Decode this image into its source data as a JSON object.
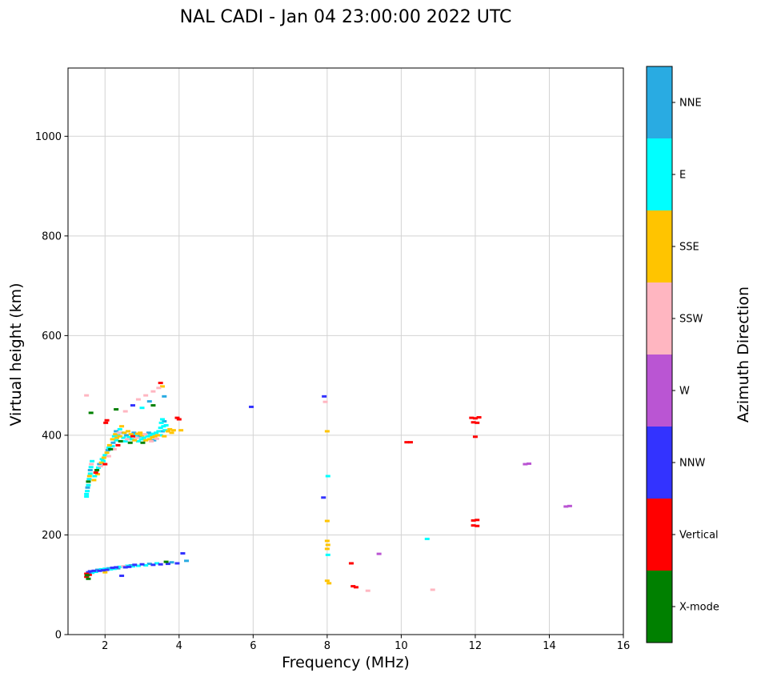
{
  "chart_data": {
    "type": "scatter",
    "title": "NAL CADI - Jan 04 23:00:00 2022 UTC",
    "xlabel": "Frequency (MHz)",
    "ylabel": "Virtual height (km)",
    "xlim": [
      1,
      16
    ],
    "ylim": [
      0,
      1137
    ],
    "xticks": [
      2,
      4,
      6,
      8,
      10,
      12,
      14,
      16
    ],
    "yticks": [
      0,
      200,
      400,
      600,
      800,
      1000
    ],
    "grid": true,
    "grid_color": "#d3d3d3",
    "marker": "horizontal-dash",
    "colorbar": {
      "label": "Azimuth Direction",
      "categories": [
        {
          "label": "NNE",
          "color": "#29abe2"
        },
        {
          "label": "E",
          "color": "#00ffff"
        },
        {
          "label": "SSE",
          "color": "#ffc400"
        },
        {
          "label": "SSW",
          "color": "#ffb6c1"
        },
        {
          "label": "W",
          "color": "#ba55d3"
        },
        {
          "label": "NNW",
          "color": "#3333ff"
        },
        {
          "label": "Vertical",
          "color": "#ff0000"
        },
        {
          "label": "X-mode",
          "color": "#008000"
        }
      ]
    },
    "series": [
      {
        "name": "NNE",
        "color": "#29abe2",
        "points": [
          [
            1.53,
            295
          ],
          [
            1.6,
            330
          ],
          [
            1.85,
            342
          ],
          [
            2.08,
            370
          ],
          [
            2.22,
            385
          ],
          [
            2.3,
            408
          ],
          [
            2.45,
            405
          ],
          [
            2.58,
            400
          ],
          [
            2.78,
            405
          ],
          [
            2.92,
            398
          ],
          [
            3.18,
            405
          ],
          [
            3.32,
            390
          ],
          [
            3.55,
            408
          ],
          [
            3.6,
            428
          ],
          [
            3.2,
            468
          ],
          [
            3.6,
            478
          ],
          [
            1.8,
            130
          ],
          [
            2.1,
            133
          ],
          [
            2.35,
            133
          ],
          [
            2.7,
            139
          ],
          [
            3.2,
            142
          ],
          [
            3.8,
            145
          ],
          [
            4.2,
            148
          ]
        ]
      },
      {
        "name": "E",
        "color": "#00ffff",
        "points": [
          [
            1.5,
            277
          ],
          [
            1.5,
            282
          ],
          [
            1.52,
            288
          ],
          [
            1.55,
            300
          ],
          [
            1.57,
            312
          ],
          [
            1.6,
            323
          ],
          [
            1.62,
            336
          ],
          [
            1.65,
            348
          ],
          [
            1.72,
            318
          ],
          [
            1.82,
            335
          ],
          [
            1.92,
            352
          ],
          [
            1.95,
            348
          ],
          [
            2.0,
            360
          ],
          [
            2.1,
            375
          ],
          [
            2.2,
            378
          ],
          [
            2.25,
            398
          ],
          [
            2.3,
            390
          ],
          [
            2.35,
            400
          ],
          [
            2.4,
            412
          ],
          [
            2.5,
            395
          ],
          [
            2.55,
            388
          ],
          [
            2.65,
            396
          ],
          [
            2.72,
            392
          ],
          [
            2.82,
            400
          ],
          [
            2.9,
            388
          ],
          [
            2.98,
            392
          ],
          [
            3.05,
            395
          ],
          [
            3.15,
            398
          ],
          [
            3.22,
            400
          ],
          [
            3.3,
            403
          ],
          [
            3.38,
            405
          ],
          [
            3.45,
            408
          ],
          [
            3.5,
            400
          ],
          [
            3.5,
            415
          ],
          [
            3.52,
            425
          ],
          [
            3.55,
            432
          ],
          [
            3.58,
            418
          ],
          [
            3.62,
            410
          ],
          [
            3.65,
            420
          ],
          [
            3.0,
            455
          ],
          [
            1.65,
            124
          ],
          [
            1.75,
            126
          ],
          [
            1.9,
            131
          ],
          [
            2.0,
            132
          ],
          [
            2.15,
            131
          ],
          [
            2.25,
            132
          ],
          [
            2.4,
            136
          ],
          [
            2.6,
            138
          ],
          [
            2.75,
            137
          ],
          [
            2.9,
            138
          ],
          [
            3.1,
            139
          ],
          [
            3.4,
            143
          ],
          [
            8.02,
            318
          ],
          [
            8.02,
            160
          ],
          [
            10.7,
            192
          ]
        ]
      },
      {
        "name": "SSE",
        "color": "#ffc400",
        "points": [
          [
            1.58,
            318
          ],
          [
            1.7,
            310
          ],
          [
            1.8,
            322
          ],
          [
            1.9,
            345
          ],
          [
            1.97,
            355
          ],
          [
            2.05,
            365
          ],
          [
            2.12,
            380
          ],
          [
            2.2,
            392
          ],
          [
            2.28,
            402
          ],
          [
            2.32,
            395
          ],
          [
            2.4,
            398
          ],
          [
            2.45,
            418
          ],
          [
            2.52,
            405
          ],
          [
            2.62,
            408
          ],
          [
            2.7,
            402
          ],
          [
            2.8,
            390
          ],
          [
            2.88,
            403
          ],
          [
            2.95,
            405
          ],
          [
            3.0,
            400
          ],
          [
            3.1,
            390
          ],
          [
            3.2,
            392
          ],
          [
            3.28,
            396
          ],
          [
            3.35,
            398
          ],
          [
            3.42,
            400
          ],
          [
            3.6,
            398
          ],
          [
            3.7,
            408
          ],
          [
            3.75,
            412
          ],
          [
            3.8,
            405
          ],
          [
            3.85,
            410
          ],
          [
            4.05,
            410
          ],
          [
            3.55,
            498
          ],
          [
            2.0,
            125
          ],
          [
            8.0,
            408
          ],
          [
            8.0,
            228
          ],
          [
            8.0,
            188
          ],
          [
            8.02,
            180
          ],
          [
            8.0,
            172
          ],
          [
            8.0,
            108
          ],
          [
            8.05,
            103
          ]
        ]
      },
      {
        "name": "SSW",
        "color": "#ffb6c1",
        "points": [
          [
            1.5,
            480
          ],
          [
            1.63,
            342
          ],
          [
            1.88,
            338
          ],
          [
            2.1,
            358
          ],
          [
            2.25,
            372
          ],
          [
            2.38,
            405
          ],
          [
            2.6,
            392
          ],
          [
            2.85,
            395
          ],
          [
            3.08,
            402
          ],
          [
            3.25,
            388
          ],
          [
            3.4,
            393
          ],
          [
            2.55,
            448
          ],
          [
            2.9,
            472
          ],
          [
            3.1,
            480
          ],
          [
            3.3,
            488
          ],
          [
            3.45,
            495
          ],
          [
            2.5,
            137
          ],
          [
            7.95,
            467
          ],
          [
            9.1,
            88
          ],
          [
            10.85,
            90
          ]
        ]
      },
      {
        "name": "W",
        "color": "#ba55d3",
        "points": [
          [
            9.4,
            162
          ],
          [
            13.35,
            342
          ],
          [
            13.45,
            343
          ],
          [
            14.45,
            257
          ],
          [
            14.55,
            258
          ]
        ]
      },
      {
        "name": "NNW",
        "color": "#3333ff",
        "points": [
          [
            2.75,
            460
          ],
          [
            5.95,
            457
          ],
          [
            7.92,
            478
          ],
          [
            7.9,
            275
          ],
          [
            1.55,
            125
          ],
          [
            1.6,
            127
          ],
          [
            1.7,
            128
          ],
          [
            1.85,
            128
          ],
          [
            1.95,
            129
          ],
          [
            2.05,
            130
          ],
          [
            2.2,
            134
          ],
          [
            2.3,
            135
          ],
          [
            2.45,
            118
          ],
          [
            2.55,
            135
          ],
          [
            2.65,
            136
          ],
          [
            2.8,
            140
          ],
          [
            3.0,
            141
          ],
          [
            3.3,
            140
          ],
          [
            3.5,
            141
          ],
          [
            3.7,
            142
          ],
          [
            3.95,
            143
          ],
          [
            4.1,
            163
          ]
        ]
      },
      {
        "name": "Vertical",
        "color": "#ff0000",
        "points": [
          [
            1.75,
            325
          ],
          [
            2.0,
            342
          ],
          [
            2.02,
            425
          ],
          [
            2.05,
            430
          ],
          [
            2.35,
            380
          ],
          [
            2.75,
            398
          ],
          [
            3.5,
            505
          ],
          [
            3.95,
            435
          ],
          [
            4.0,
            432
          ],
          [
            1.5,
            122
          ],
          [
            1.5,
            116
          ],
          [
            1.58,
            120
          ],
          [
            8.65,
            143
          ],
          [
            8.7,
            97
          ],
          [
            8.78,
            95
          ],
          [
            10.15,
            386
          ],
          [
            10.25,
            386
          ],
          [
            11.9,
            435
          ],
          [
            12.0,
            434
          ],
          [
            12.1,
            436
          ],
          [
            11.95,
            426
          ],
          [
            12.05,
            425
          ],
          [
            12.0,
            397
          ],
          [
            11.95,
            229
          ],
          [
            12.05,
            230
          ],
          [
            11.95,
            219
          ],
          [
            12.05,
            218
          ]
        ]
      },
      {
        "name": "X-mode",
        "color": "#008000",
        "points": [
          [
            1.55,
            307
          ],
          [
            1.62,
            445
          ],
          [
            1.78,
            330
          ],
          [
            2.15,
            372
          ],
          [
            2.3,
            452
          ],
          [
            2.42,
            388
          ],
          [
            2.68,
            385
          ],
          [
            3.02,
            385
          ],
          [
            3.3,
            460
          ],
          [
            1.52,
            119
          ],
          [
            1.55,
            112
          ],
          [
            3.65,
            146
          ]
        ]
      }
    ]
  }
}
